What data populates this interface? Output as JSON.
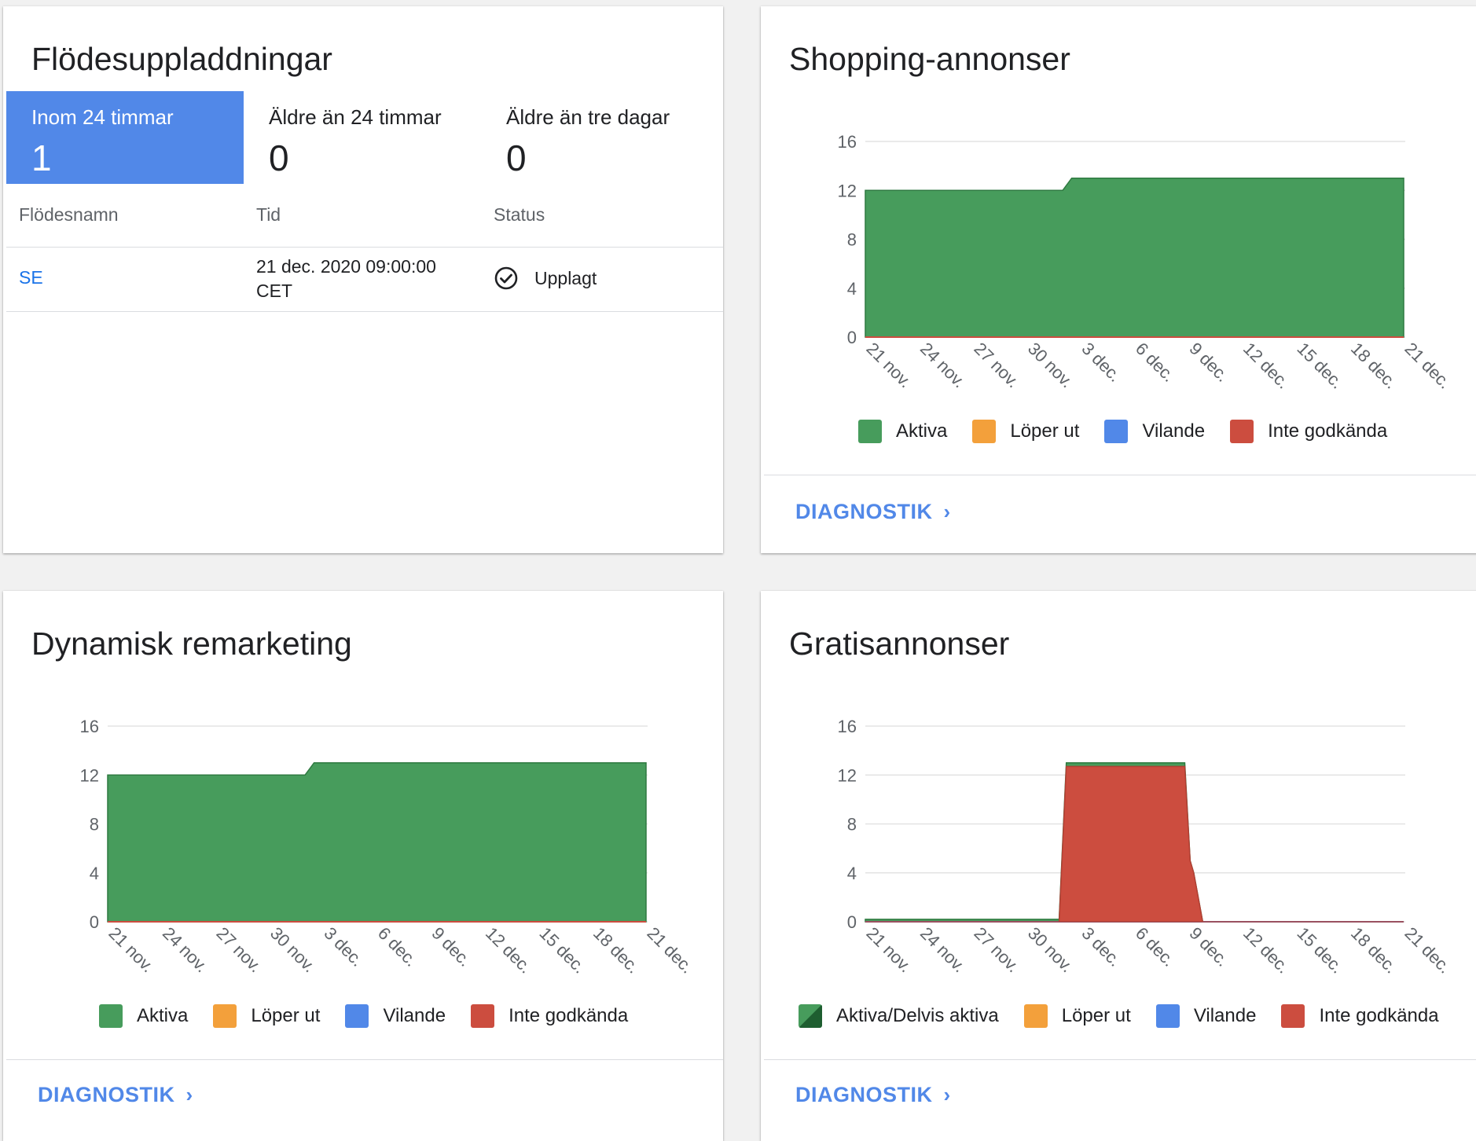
{
  "colors": {
    "active": "#479c5c",
    "expiring": "#f3a03b",
    "paused": "#5188e8",
    "disapproved": "#cc4d3f",
    "accent": "#5188e8"
  },
  "uploads": {
    "title": "Flödesuppladdningar",
    "tabs": [
      {
        "label": "Inom 24 timmar",
        "count": "1",
        "active": true
      },
      {
        "label": "Äldre än 24 timmar",
        "count": "0",
        "active": false
      },
      {
        "label": "Äldre än tre dagar",
        "count": "0",
        "active": false
      }
    ],
    "columns": [
      "Flödesnamn",
      "Tid",
      "Status"
    ],
    "rows": [
      {
        "name": "SE",
        "time_line1": "21 dec. 2020 09:00:00",
        "time_line2": "CET",
        "status": "Upplagt",
        "status_icon": "check-circle-icon"
      }
    ]
  },
  "shopping": {
    "title": "Shopping-annonser",
    "legend": [
      "Aktiva",
      "Löper ut",
      "Vilande",
      "Inte godkända"
    ],
    "diagnostics_label": "DIAGNOSTIK"
  },
  "dynamic": {
    "title": "Dynamisk remarketing",
    "legend": [
      "Aktiva",
      "Löper ut",
      "Vilande",
      "Inte godkända"
    ],
    "diagnostics_label": "DIAGNOSTIK"
  },
  "free": {
    "title": "Gratisannonser",
    "legend": [
      "Aktiva/Delvis aktiva",
      "Löper ut",
      "Vilande",
      "Inte godkända"
    ],
    "diagnostics_label": "DIAGNOSTIK"
  },
  "chart_data": [
    {
      "id": "shopping",
      "type": "area",
      "title": "Shopping-annonser",
      "ylim": [
        0,
        16
      ],
      "yticks": [
        0,
        4,
        8,
        12,
        16
      ],
      "tick_labels": [
        "21 nov.",
        "24 nov.",
        "27 nov.",
        "30 nov.",
        "3 dec.",
        "6 dec.",
        "9 dec.",
        "12 dec.",
        "15 dec.",
        "18 dec.",
        "21 dec."
      ],
      "x_days": [
        0,
        11,
        11.5,
        30
      ],
      "series": [
        {
          "name": "Aktiva",
          "key": "active",
          "values": [
            12,
            12,
            13,
            13
          ]
        },
        {
          "name": "Löper ut",
          "key": "expiring",
          "values": [
            0,
            0,
            0,
            0
          ]
        },
        {
          "name": "Vilande",
          "key": "paused",
          "values": [
            0,
            0,
            0,
            0
          ]
        },
        {
          "name": "Inte godkända",
          "key": "disapproved",
          "values": [
            0,
            0,
            0,
            0
          ]
        }
      ]
    },
    {
      "id": "dynamic",
      "type": "area",
      "title": "Dynamisk remarketing",
      "ylim": [
        0,
        16
      ],
      "yticks": [
        0,
        4,
        8,
        12,
        16
      ],
      "tick_labels": [
        "21 nov.",
        "24 nov.",
        "27 nov.",
        "30 nov.",
        "3 dec.",
        "6 dec.",
        "9 dec.",
        "12 dec.",
        "15 dec.",
        "18 dec.",
        "21 dec."
      ],
      "x_days": [
        0,
        11,
        11.5,
        30
      ],
      "series": [
        {
          "name": "Aktiva",
          "key": "active",
          "values": [
            12,
            12,
            13,
            13
          ]
        },
        {
          "name": "Löper ut",
          "key": "expiring",
          "values": [
            0,
            0,
            0,
            0
          ]
        },
        {
          "name": "Vilande",
          "key": "paused",
          "values": [
            0,
            0,
            0,
            0
          ]
        },
        {
          "name": "Inte godkända",
          "key": "disapproved",
          "values": [
            0,
            0,
            0,
            0
          ]
        }
      ]
    },
    {
      "id": "free",
      "type": "area",
      "title": "Gratisannonser",
      "ylim": [
        0,
        16
      ],
      "yticks": [
        0,
        4,
        8,
        12,
        16
      ],
      "tick_labels": [
        "21 nov.",
        "24 nov.",
        "27 nov.",
        "30 nov.",
        "3 dec.",
        "6 dec.",
        "9 dec.",
        "12 dec.",
        "15 dec.",
        "18 dec.",
        "21 dec."
      ],
      "x_days": [
        0,
        10.8,
        11.2,
        17.8,
        18.1,
        18.3,
        18.8,
        30
      ],
      "series": [
        {
          "name": "Aktiva/Delvis aktiva",
          "key": "active",
          "values": [
            0.2,
            0.2,
            13,
            13,
            5,
            4,
            0,
            0
          ]
        },
        {
          "name": "Löper ut",
          "key": "expiring",
          "values": [
            0,
            0,
            0,
            0,
            0,
            0,
            0,
            0
          ]
        },
        {
          "name": "Vilande",
          "key": "paused",
          "values": [
            0,
            0,
            0,
            0,
            0,
            0,
            0,
            0
          ]
        },
        {
          "name": "Inte godkända",
          "key": "disapproved",
          "values": [
            0,
            0,
            12.7,
            12.7,
            5,
            4,
            0,
            0
          ]
        }
      ]
    }
  ]
}
